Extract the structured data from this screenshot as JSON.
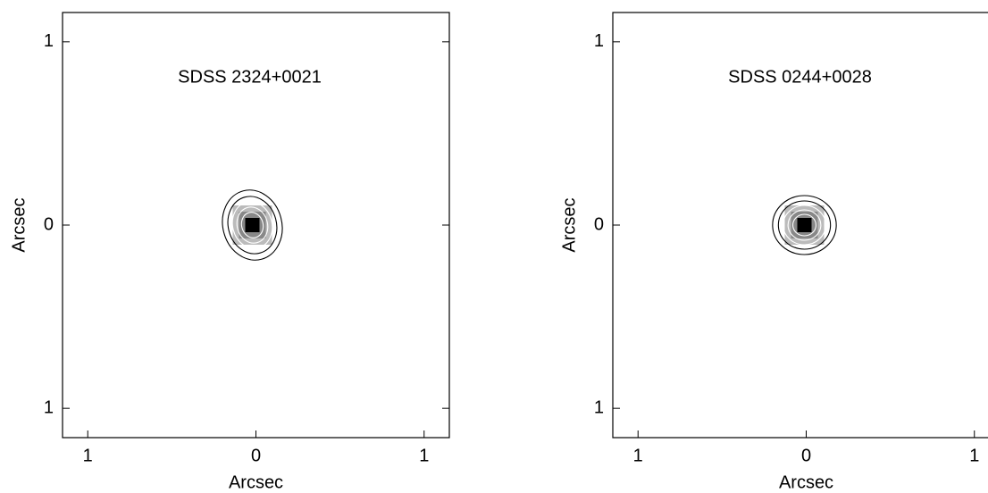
{
  "chart_data": [
    {
      "type": "image",
      "title": "SDSS 2324+0021",
      "xlabel": "Arcsec",
      "ylabel": "Arcsec",
      "xlim": [
        -1.15,
        1.15
      ],
      "ylim": [
        -1.16,
        1.16
      ],
      "xticks": [
        {
          "value": -1,
          "label": "1"
        },
        0,
        1
      ],
      "yticks": [
        {
          "value": -1,
          "label": "1"
        },
        0,
        1
      ]
    },
    {
      "type": "image",
      "title": "SDSS 0244+0028",
      "xlabel": "Arcsec",
      "ylabel": "Arcsec",
      "xlim": [
        -1.15,
        1.15
      ],
      "ylim": [
        -1.16,
        1.16
      ],
      "xticks": [
        {
          "value": -1,
          "label": "1"
        },
        0,
        1
      ],
      "yticks": [
        {
          "value": -1,
          "label": "1"
        },
        0,
        1
      ]
    }
  ]
}
